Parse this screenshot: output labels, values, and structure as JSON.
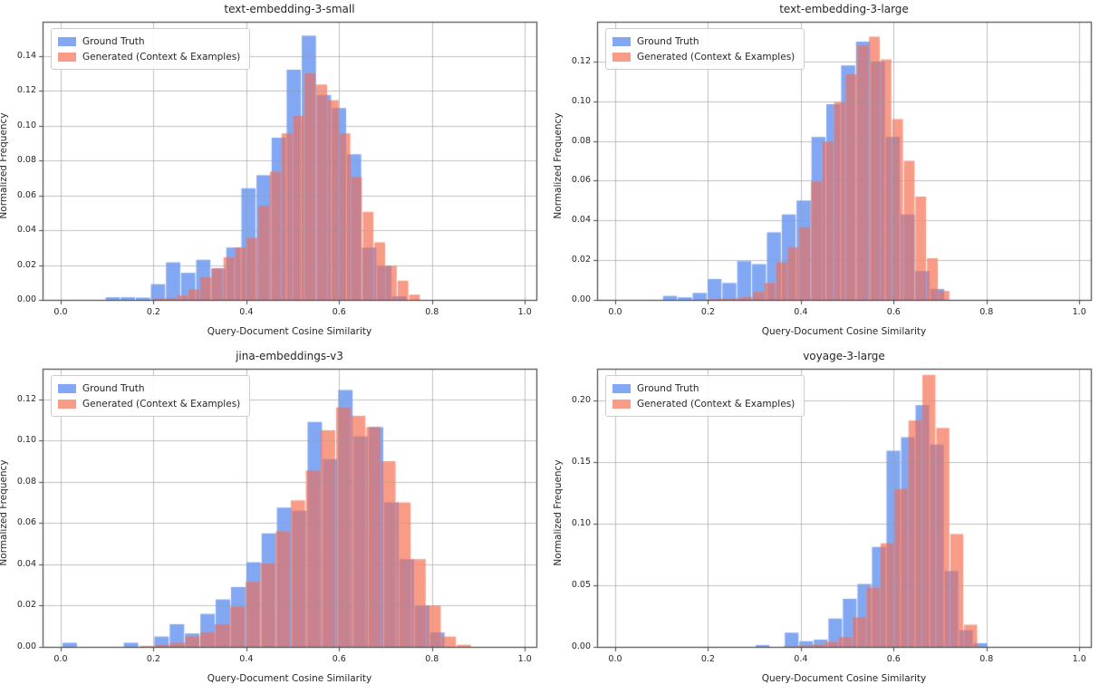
{
  "figure": {
    "background": "#ffffff",
    "colors": {
      "ground_truth_fill": "#82a8f4",
      "generated_fill": "#f99c87",
      "overlap_fill": "#c7818f",
      "gridline": "#d2d2d2",
      "spine": "#4a4a4a",
      "text": "#262626"
    }
  },
  "chart_data": [
    {
      "type": "bar",
      "subtype": "overlaid-histogram",
      "title": "text-embedding-3-small",
      "xlabel": "Query-Document Cosine Similarity",
      "ylabel": "Normalized Frequency",
      "xlim": [
        -0.039,
        1.025
      ],
      "ylim": [
        0,
        0.1595
      ],
      "x_ticks": [
        0.0,
        0.2,
        0.4,
        0.6,
        0.8,
        1.0
      ],
      "y_ticks": [
        0.0,
        0.02,
        0.04,
        0.06,
        0.08,
        0.1,
        0.12,
        0.14
      ],
      "grid": true,
      "legend_position": "upper-left",
      "series": [
        {
          "name": "Ground Truth",
          "color": "#82a8f4",
          "bin_start": 0.096,
          "bin_width": 0.0325,
          "values": [
            0.0015,
            0.0015,
            0.0013,
            0.009,
            0.0215,
            0.0155,
            0.023,
            0.018,
            0.03,
            0.064,
            0.0715,
            0.093,
            0.132,
            0.1515,
            0.1175,
            0.11,
            0.0835,
            0.03,
            0.0195,
            0.002
          ]
        },
        {
          "name": "Generated (Context & Examples)",
          "color": "#f99c87",
          "bin_start": 0.2,
          "bin_width": 0.025,
          "values": [
            0.0008,
            0.001,
            0.0025,
            0.006,
            0.013,
            0.018,
            0.0245,
            0.03,
            0.0355,
            0.054,
            0.0735,
            0.0955,
            0.1055,
            0.13,
            0.1235,
            0.1145,
            0.0955,
            0.0705,
            0.0505,
            0.033,
            0.0195,
            0.011,
            0.003
          ]
        }
      ]
    },
    {
      "type": "bar",
      "subtype": "overlaid-histogram",
      "title": "text-embedding-3-large",
      "xlabel": "Query-Document Cosine Similarity",
      "ylabel": "Normalized Frequency",
      "xlim": [
        -0.039,
        1.025
      ],
      "ylim": [
        0,
        0.14
      ],
      "x_ticks": [
        0.0,
        0.2,
        0.4,
        0.6,
        0.8,
        1.0
      ],
      "y_ticks": [
        0.0,
        0.02,
        0.04,
        0.06,
        0.08,
        0.1,
        0.12
      ],
      "grid": true,
      "legend_position": "upper-left",
      "series": [
        {
          "name": "Ground Truth",
          "color": "#82a8f4",
          "bin_start": 0.102,
          "bin_width": 0.032,
          "values": [
            0.002,
            0.0013,
            0.0035,
            0.0105,
            0.0085,
            0.0195,
            0.018,
            0.034,
            0.043,
            0.05,
            0.082,
            0.0985,
            0.118,
            0.13,
            0.12,
            0.082,
            0.043,
            0.0145,
            0.0055
          ]
        },
        {
          "name": "Generated (Context & Examples)",
          "color": "#f99c87",
          "bin_start": 0.196,
          "bin_width": 0.025,
          "values": [
            0.0003,
            0.0005,
            0.0008,
            0.0015,
            0.004,
            0.0085,
            0.019,
            0.0265,
            0.0365,
            0.0595,
            0.0795,
            0.0995,
            0.1135,
            0.128,
            0.1325,
            0.121,
            0.091,
            0.07,
            0.052,
            0.021,
            0.0045
          ]
        }
      ]
    },
    {
      "type": "bar",
      "subtype": "overlaid-histogram",
      "title": "jina-embeddings-v3",
      "xlabel": "Query-Document Cosine Similarity",
      "ylabel": "Normalized Frequency",
      "xlim": [
        -0.039,
        1.025
      ],
      "ylim": [
        0,
        0.1348
      ],
      "x_ticks": [
        0.0,
        0.2,
        0.4,
        0.6,
        0.8,
        1.0
      ],
      "y_ticks": [
        0.0,
        0.02,
        0.04,
        0.06,
        0.08,
        0.1,
        0.12
      ],
      "grid": true,
      "legend_position": "upper-left",
      "series": [
        {
          "name": "Ground Truth",
          "color": "#82a8f4",
          "bin_start": 0.003,
          "bin_width": 0.033,
          "values": [
            0.002,
            0,
            0,
            0,
            0.002,
            0,
            0.005,
            0.011,
            0.0065,
            0.016,
            0.023,
            0.029,
            0.041,
            0.055,
            0.0675,
            0.066,
            0.109,
            0.091,
            0.1245,
            0.102,
            0.1065,
            0.07,
            0.0425,
            0.02,
            0.007
          ]
        },
        {
          "name": "Generated (Context & Examples)",
          "color": "#f99c87",
          "bin_start": 0.17,
          "bin_width": 0.0325,
          "values": [
            0.0005,
            0.001,
            0.002,
            0.005,
            0.007,
            0.011,
            0.0195,
            0.0315,
            0.0405,
            0.056,
            0.071,
            0.0855,
            0.105,
            0.116,
            0.112,
            0.1065,
            0.09,
            0.07,
            0.0425,
            0.02,
            0.005,
            0.001
          ]
        }
      ]
    },
    {
      "type": "bar",
      "subtype": "overlaid-histogram",
      "title": "voyage-3-large",
      "xlabel": "Query-Document Cosine Similarity",
      "ylabel": "Normalized Frequency",
      "xlim": [
        -0.039,
        1.025
      ],
      "ylim": [
        0,
        0.2255
      ],
      "x_ticks": [
        0.0,
        0.2,
        0.4,
        0.6,
        0.8,
        1.0
      ],
      "y_ticks": [
        0.0,
        0.05,
        0.1,
        0.15,
        0.2
      ],
      "grid": true,
      "legend_position": "upper-left",
      "series": [
        {
          "name": "Ground Truth",
          "color": "#82a8f4",
          "bin_start": 0.302,
          "bin_width": 0.0313,
          "values": [
            0.0015,
            0,
            0.0115,
            0.0046,
            0.0059,
            0.023,
            0.039,
            0.051,
            0.081,
            0.159,
            0.17,
            0.196,
            0.164,
            0.0615,
            0.0135,
            0.003
          ]
        },
        {
          "name": "Generated (Context & Examples)",
          "color": "#f99c87",
          "bin_start": 0.361,
          "bin_width": 0.03,
          "values": [
            0.0005,
            0.001,
            0.002,
            0.004,
            0.008,
            0.024,
            0.048,
            0.084,
            0.128,
            0.1835,
            0.2205,
            0.1775,
            0.0915,
            0.018
          ]
        }
      ]
    }
  ]
}
